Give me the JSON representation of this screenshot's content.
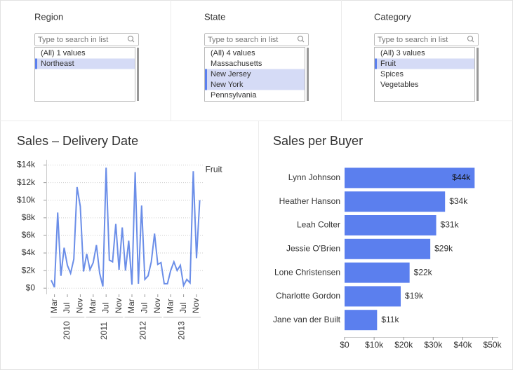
{
  "filters": [
    {
      "title": "Region",
      "search_placeholder": "Type to search in list",
      "items": [
        {
          "label": "(All) 1 values",
          "selected": false
        },
        {
          "label": "Northeast",
          "selected": true
        }
      ]
    },
    {
      "title": "State",
      "search_placeholder": "Type to search in list",
      "items": [
        {
          "label": "(All) 4 values",
          "selected": false
        },
        {
          "label": "Massachusetts",
          "selected": false
        },
        {
          "label": "New Jersey",
          "selected": true
        },
        {
          "label": "New York",
          "selected": true
        },
        {
          "label": "Pennsylvania",
          "selected": false
        }
      ]
    },
    {
      "title": "Category",
      "search_placeholder": "Type to search in list",
      "items": [
        {
          "label": "(All) 3 values",
          "selected": false
        },
        {
          "label": "Fruit",
          "selected": true
        },
        {
          "label": "Spices",
          "selected": false
        },
        {
          "label": "Vegetables",
          "selected": false
        }
      ]
    }
  ],
  "chart_data": [
    {
      "type": "line",
      "title": "Sales – Delivery Date",
      "groups": [
        {
          "label": "2010",
          "categories": [
            null,
            "Mar",
            null,
            null,
            null,
            "Jul",
            null,
            null,
            null,
            "Nov",
            null
          ]
        },
        {
          "label": "2011",
          "categories": [
            null,
            null,
            "Mar",
            null,
            null,
            null,
            "Jul",
            null,
            null,
            null,
            "Nov",
            null
          ]
        },
        {
          "label": "2012",
          "categories": [
            null,
            null,
            "Mar",
            null,
            null,
            null,
            "Jul",
            null,
            null,
            null,
            "Nov",
            null
          ]
        },
        {
          "label": "2013",
          "categories": [
            null,
            null,
            "Mar",
            null,
            null,
            null,
            "Jul",
            null,
            null,
            null,
            "Nov",
            null
          ]
        }
      ],
      "series": [
        {
          "name": "Fruit",
          "color": "#6b8ee8",
          "values": [
            900,
            100,
            8600,
            1400,
            4600,
            2600,
            1700,
            3300,
            11500,
            9300,
            1900,
            3900,
            2100,
            2900,
            4900,
            1700,
            200,
            13700,
            3200,
            3000,
            7300,
            2100,
            6900,
            2000,
            5400,
            400,
            13200,
            500,
            9400,
            1000,
            1400,
            3000,
            6200,
            2700,
            2900,
            500,
            500,
            2000,
            3000,
            2000,
            2600,
            300,
            1000,
            600,
            13300,
            3400,
            10000
          ]
        }
      ],
      "ylim": [
        -700,
        14600
      ],
      "yticks": [
        {
          "value": 0,
          "label": "$0"
        },
        {
          "value": 2000,
          "label": "$2k"
        },
        {
          "value": 4000,
          "label": "$4k"
        },
        {
          "value": 6000,
          "label": "$6k"
        },
        {
          "value": 8000,
          "label": "$8k"
        },
        {
          "value": 10000,
          "label": "$10k"
        },
        {
          "value": 12000,
          "label": "$12k"
        },
        {
          "value": 14000,
          "label": "$14k"
        }
      ],
      "grid": true
    },
    {
      "type": "bar",
      "orientation": "horizontal",
      "title": "Sales per Buyer",
      "categories": [
        "Lynn Johnson",
        "Heather Hanson",
        "Leah Colter",
        "Jessie O'Brien",
        "Lone Christensen",
        "Charlotte Gordon",
        "Jane van der Built"
      ],
      "values": [
        44000,
        34000,
        31000,
        29000,
        22000,
        19000,
        11000
      ],
      "value_labels": [
        "$44k",
        "$34k",
        "$31k",
        "$29k",
        "$22k",
        "$19k",
        "$11k"
      ],
      "color": "#5b7fee",
      "xlim": [
        0,
        52000
      ],
      "xticks": [
        {
          "value": 0,
          "label": "$0"
        },
        {
          "value": 10000,
          "label": "$10k"
        },
        {
          "value": 20000,
          "label": "$20k"
        },
        {
          "value": 30000,
          "label": "$30k"
        },
        {
          "value": 40000,
          "label": "$40k"
        },
        {
          "value": 50000,
          "label": "$50k"
        }
      ]
    }
  ]
}
